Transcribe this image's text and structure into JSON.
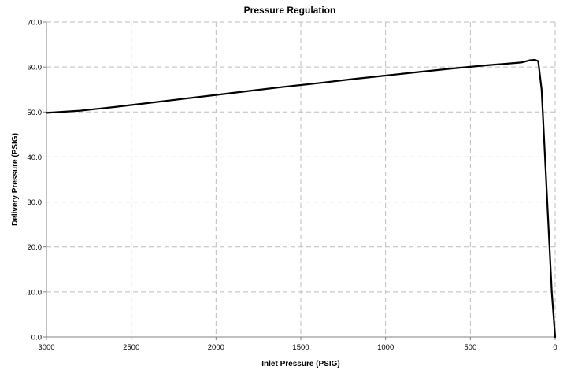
{
  "chart_data": {
    "type": "line",
    "title": "Pressure Regulation",
    "xlabel": "Inlet Pressure (PSIG)",
    "ylabel": "Delivery Pressure (PSIG)",
    "x_reversed": true,
    "xlim": [
      3000,
      0
    ],
    "ylim": [
      0,
      70
    ],
    "xticks": [
      3000,
      2500,
      2000,
      1500,
      1000,
      500,
      0
    ],
    "xtick_labels": [
      "3000",
      "2500",
      "2000",
      "1500",
      "1000",
      "500",
      "0"
    ],
    "yticks": [
      0,
      10,
      20,
      30,
      40,
      50,
      60,
      70
    ],
    "ytick_labels": [
      "0.0",
      "10.0",
      "20.0",
      "30.0",
      "40.0",
      "50.0",
      "60.0",
      "70.0"
    ],
    "grid": true,
    "legend": "none",
    "line_color": "#000000",
    "series": [
      {
        "x": [
          3000,
          2800,
          2600,
          2400,
          2200,
          2000,
          1800,
          1600,
          1400,
          1200,
          1000,
          800,
          600,
          400,
          200,
          150,
          120,
          100,
          80,
          60,
          40,
          20,
          0
        ],
        "y": [
          49.8,
          50.3,
          51.1,
          52.0,
          52.9,
          53.8,
          54.7,
          55.6,
          56.4,
          57.3,
          58.1,
          58.9,
          59.7,
          60.4,
          61.0,
          61.5,
          61.6,
          61.3,
          55.0,
          40.0,
          25.0,
          10.0,
          0.0
        ]
      }
    ]
  }
}
